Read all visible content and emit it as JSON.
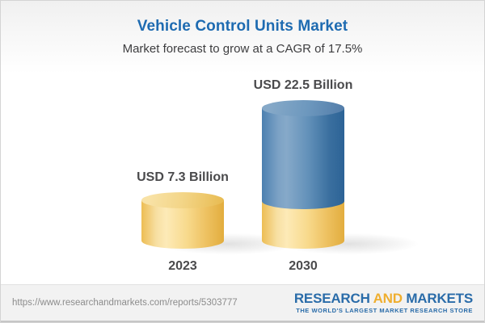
{
  "header": {
    "title": "Vehicle Control Units Market",
    "subtitle": "Market forecast to grow at a CAGR of 17.5%"
  },
  "chart_data": {
    "type": "bar",
    "variant": "3d-cylinder",
    "title": "Vehicle Control Units Market",
    "subtitle": "Market forecast to grow at a CAGR of 17.5%",
    "categories": [
      "2023",
      "2030"
    ],
    "values": [
      7.3,
      22.5
    ],
    "value_labels": [
      "USD 7.3 Billion",
      "USD 22.5 Billion"
    ],
    "unit": "USD Billion",
    "cagr_percent": 17.5,
    "series_note": "2030 cylinder is stacked: gold base equals 2023 value (7.3), blue top is growth to 22.5",
    "colors": {
      "bar_gold": "#f5d687",
      "bar_blue": "#5b8ab4",
      "label_text": "#4a4a4c",
      "title_blue": "#1e6bb1"
    },
    "legend": "none",
    "axes": "none",
    "grid": false
  },
  "footer": {
    "url": "https://www.researchandmarkets.com/reports/5303777",
    "logo": {
      "part1": "RESEARCH",
      "part2": "AND",
      "part3": "MARKETS",
      "tagline": "THE WORLD'S LARGEST MARKET RESEARCH STORE"
    }
  }
}
